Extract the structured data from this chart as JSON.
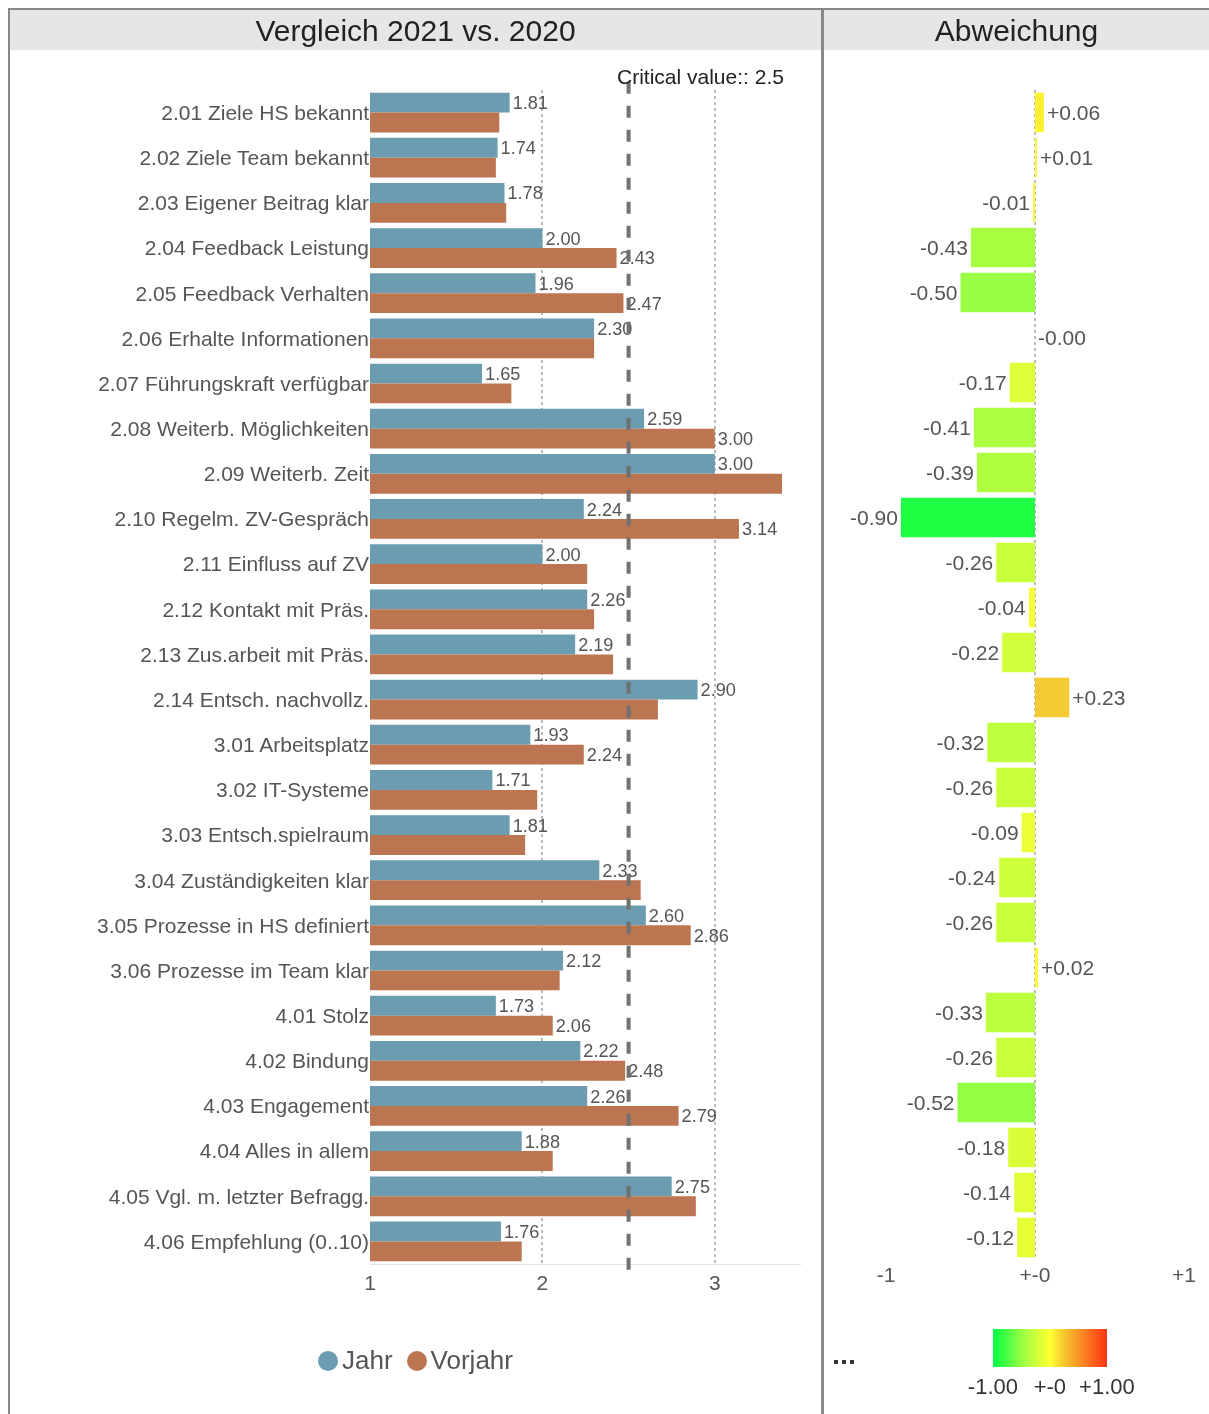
{
  "chart_data": [
    {
      "type": "bar",
      "title": "Vergleich 2021 vs. 2020",
      "orientation": "horizontal",
      "categories": [
        "2.01 Ziele HS bekannt",
        "2.02 Ziele Team bekannt",
        "2.03 Eigener Beitrag klar",
        "2.04 Feedback Leistung",
        "2.05 Feedback Verhalten",
        "2.06 Erhalte Informationen",
        "2.07 Führungskraft verfügbar",
        "2.08 Weiterb. Möglichkeiten",
        "2.09 Weiterb. Zeit",
        "2.10 Regelm. ZV-Gespräch",
        "2.11 Einfluss auf ZV",
        "2.12 Kontakt mit Präs.",
        "2.13 Zus.arbeit mit Präs.",
        "2.14 Entsch. nachvollz.",
        "3.01 Arbeitsplatz",
        "3.02 IT-Systeme",
        "3.03 Entsch.spielraum",
        "3.04 Zuständigkeiten klar",
        "3.05 Prozesse in HS definiert",
        "3.06 Prozesse im Team klar",
        "4.01 Stolz",
        "4.02 Bindung",
        "4.03 Engagement",
        "4.04 Alles in allem",
        "4.05 Vgl. m. letzter Befragg.",
        "4.06 Empfehlung (0..10)"
      ],
      "series": [
        {
          "name": "Jahr",
          "color": "#6b9cb0",
          "values": [
            1.81,
            1.74,
            1.78,
            2.0,
            1.96,
            2.3,
            1.65,
            2.59,
            3.0,
            2.24,
            2.0,
            2.26,
            2.19,
            2.9,
            1.93,
            1.71,
            1.81,
            2.33,
            2.6,
            2.12,
            1.73,
            2.22,
            2.26,
            1.88,
            2.75,
            1.76
          ],
          "value_labels": [
            "1.81",
            "1.74",
            "1.78",
            "2.00",
            "1.96",
            "2.30",
            "1.65",
            "2.59",
            "3.00",
            "2.24",
            "2.00",
            "2.26",
            "2.19",
            "2.90",
            "1.93",
            "1.71",
            "1.81",
            "2.33",
            "2.60",
            "2.12",
            "1.73",
            "2.22",
            "2.26",
            "1.88",
            "2.75",
            "1.76"
          ]
        },
        {
          "name": "Vorjahr",
          "color": "#bb7550",
          "values": [
            1.75,
            1.73,
            1.79,
            2.43,
            2.47,
            2.3,
            1.82,
            3.0,
            3.39,
            3.14,
            2.26,
            2.3,
            2.41,
            2.67,
            2.24,
            1.97,
            1.9,
            2.57,
            2.86,
            2.1,
            2.06,
            2.48,
            2.79,
            2.06,
            2.89,
            1.88
          ],
          "value_labels": [
            null,
            null,
            null,
            "2.43",
            "2.47",
            null,
            null,
            "3.00",
            null,
            "3.14",
            null,
            null,
            null,
            null,
            "2.24",
            null,
            null,
            null,
            "2.86",
            null,
            "2.06",
            "2.48",
            "2.79",
            null,
            null,
            null
          ]
        }
      ],
      "xlim": [
        1,
        3.5
      ],
      "xticks": [
        1,
        2,
        3
      ],
      "grid": "x",
      "legend": "bottom",
      "marker": "circle",
      "ref_lines": [
        {
          "axis": "x",
          "value": 2.5,
          "label": "Critical value:: 2.5",
          "color": "#707070",
          "line_style": "dashed"
        }
      ]
    },
    {
      "type": "bar",
      "title": "Abweichung",
      "orientation": "horizontal",
      "tick_labels": "x",
      "categories": [
        null,
        null,
        null,
        null,
        null,
        null,
        null,
        null,
        null,
        null,
        null,
        null,
        null,
        null,
        null,
        null,
        null,
        null,
        null,
        null,
        null,
        null,
        null,
        null,
        null,
        null
      ],
      "values": [
        0.06,
        0.01,
        -0.01,
        -0.43,
        -0.5,
        -0.0,
        -0.17,
        -0.41,
        -0.39,
        -0.9,
        -0.26,
        -0.04,
        -0.22,
        0.23,
        -0.32,
        -0.26,
        -0.09,
        -0.24,
        -0.26,
        0.02,
        -0.33,
        -0.26,
        -0.52,
        -0.18,
        -0.14,
        -0.12
      ],
      "value_labels": [
        "+0.06",
        "+0.01",
        "-0.01",
        "-0.43",
        "-0.50",
        "-0.00",
        "-0.17",
        "-0.41",
        "-0.39",
        "-0.90",
        "-0.26",
        "-0.04",
        "-0.22",
        "+0.23",
        "-0.32",
        "-0.26",
        "-0.09",
        "-0.24",
        "-0.26",
        "+0.02",
        "-0.33",
        "-0.26",
        "-0.52",
        "-0.18",
        "-0.14",
        "-0.12"
      ],
      "xlim": [
        -1,
        1
      ],
      "xticks": [
        -1,
        {
          "value": 0,
          "label": "+-0"
        },
        {
          "value": 1,
          "label": "+1"
        }
      ],
      "grid": "x",
      "clim": [
        -1,
        1
      ],
      "cticks": [
        {
          "value": -1,
          "label": "-1.00"
        },
        {
          "value": 0,
          "label": "+-0"
        },
        {
          "value": 1,
          "label": "+1.00"
        }
      ]
    }
  ]
}
